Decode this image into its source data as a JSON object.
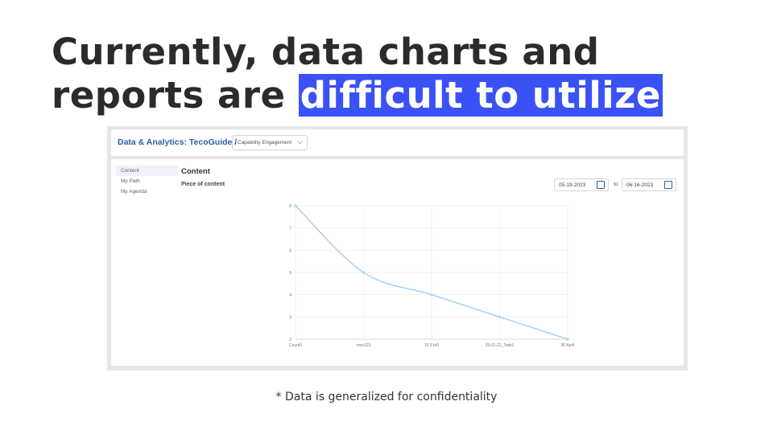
{
  "slide": {
    "headline_part1": "Currently, data charts and",
    "headline_part2": "reports are ",
    "headline_highlight": "difficult to utilize",
    "caption": "* Data is generalized for confidentiality",
    "highlight_color": "#3a52f5"
  },
  "app": {
    "breadcrumb": "Data & Analytics: TecoGuide /",
    "dropdown_value": "Capability Engagement",
    "sidebar": [
      {
        "label": "Content"
      },
      {
        "label": "My Path"
      },
      {
        "label": "My Agenda"
      }
    ],
    "content_title": "Content",
    "content_subtitle": "Piece of content",
    "date_from": "05-19-2023",
    "date_to": "06-16-2023",
    "date_sep": "to"
  },
  "chart_data": {
    "type": "line",
    "categories": [
      "Count0",
      "new123",
      "10.3 bt3",
      "29-01-22_Task1",
      "30 April"
    ],
    "x": [
      0,
      1,
      2,
      3,
      4
    ],
    "y_ticks": [
      2,
      3,
      4,
      5,
      6,
      7,
      8
    ],
    "ylim": [
      2,
      8
    ],
    "series": [
      {
        "values": [
          8,
          5,
          4,
          3,
          2
        ]
      }
    ],
    "line_color": "#a8d4f5",
    "grid": true
  }
}
